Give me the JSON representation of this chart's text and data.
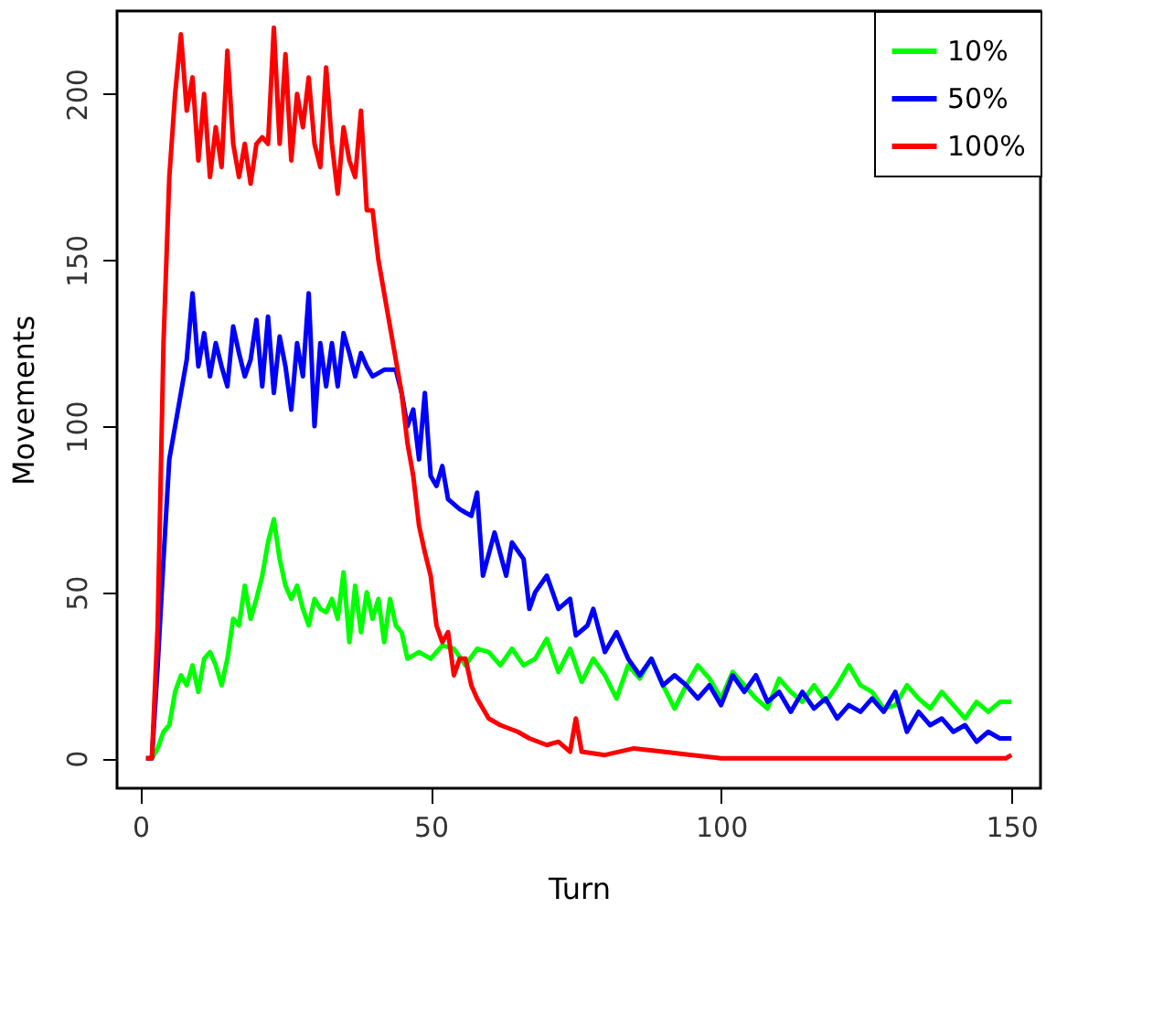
{
  "chart_data": {
    "type": "line",
    "xlabel": "Turn",
    "ylabel": "Movements",
    "xlim": [
      -4,
      155
    ],
    "ylim": [
      -9,
      225
    ],
    "xticks": [
      0,
      50,
      100,
      150
    ],
    "yticks": [
      0,
      50,
      100,
      150,
      200
    ],
    "grid": false,
    "legend": "top right",
    "marker": "none",
    "line_style": "solid",
    "series": [
      {
        "name": "10%",
        "color": "#00ff00",
        "x": [
          1,
          2,
          3,
          4,
          5,
          6,
          7,
          8,
          9,
          10,
          11,
          12,
          13,
          14,
          15,
          16,
          17,
          18,
          19,
          20,
          21,
          22,
          23,
          24,
          25,
          26,
          27,
          28,
          29,
          30,
          31,
          32,
          33,
          34,
          35,
          36,
          37,
          38,
          39,
          40,
          41,
          42,
          43,
          44,
          45,
          46,
          48,
          50,
          52,
          54,
          56,
          58,
          60,
          62,
          64,
          66,
          68,
          70,
          72,
          74,
          76,
          78,
          80,
          82,
          84,
          86,
          88,
          90,
          92,
          94,
          96,
          98,
          100,
          102,
          104,
          106,
          108,
          110,
          112,
          114,
          116,
          118,
          120,
          122,
          124,
          126,
          128,
          130,
          132,
          134,
          136,
          138,
          140,
          142,
          144,
          146,
          148,
          150
        ],
        "values": [
          0,
          0,
          3,
          8,
          10,
          20,
          25,
          22,
          28,
          20,
          30,
          32,
          28,
          22,
          30,
          42,
          40,
          52,
          42,
          48,
          55,
          65,
          72,
          60,
          52,
          48,
          52,
          45,
          40,
          48,
          45,
          44,
          48,
          42,
          56,
          35,
          52,
          38,
          50,
          42,
          48,
          35,
          48,
          40,
          38,
          30,
          32,
          30,
          34,
          33,
          28,
          33,
          32,
          28,
          33,
          28,
          30,
          36,
          26,
          33,
          23,
          30,
          25,
          18,
          28,
          24,
          30,
          22,
          15,
          22,
          28,
          24,
          18,
          26,
          22,
          18,
          15,
          24,
          20,
          17,
          22,
          17,
          22,
          28,
          22,
          20,
          15,
          16,
          22,
          18,
          15,
          20,
          16,
          12,
          17,
          14,
          17,
          17
        ]
      },
      {
        "name": "50%",
        "color": "#0000ff",
        "x": [
          1,
          2,
          3,
          4,
          5,
          6,
          7,
          8,
          9,
          10,
          11,
          12,
          13,
          14,
          15,
          16,
          17,
          18,
          19,
          20,
          21,
          22,
          23,
          24,
          25,
          26,
          27,
          28,
          29,
          30,
          31,
          32,
          33,
          34,
          35,
          36,
          37,
          38,
          39,
          40,
          42,
          44,
          45,
          46,
          47,
          48,
          49,
          50,
          51,
          52,
          53,
          55,
          57,
          58,
          59,
          61,
          63,
          64,
          66,
          67,
          68,
          70,
          72,
          74,
          75,
          77,
          78,
          80,
          82,
          84,
          86,
          88,
          90,
          92,
          94,
          96,
          98,
          100,
          102,
          104,
          106,
          108,
          110,
          112,
          114,
          116,
          118,
          120,
          122,
          124,
          126,
          128,
          130,
          132,
          134,
          136,
          138,
          140,
          142,
          144,
          146,
          148,
          150
        ],
        "values": [
          0,
          0,
          28,
          60,
          90,
          100,
          110,
          120,
          140,
          118,
          128,
          115,
          125,
          118,
          112,
          130,
          122,
          115,
          120,
          132,
          112,
          133,
          110,
          127,
          118,
          105,
          125,
          115,
          140,
          100,
          125,
          112,
          125,
          112,
          128,
          122,
          115,
          122,
          118,
          115,
          117,
          117,
          110,
          100,
          105,
          90,
          110,
          85,
          82,
          88,
          78,
          75,
          73,
          80,
          55,
          68,
          55,
          65,
          60,
          45,
          50,
          55,
          45,
          48,
          37,
          40,
          45,
          32,
          38,
          30,
          25,
          30,
          22,
          25,
          22,
          18,
          22,
          16,
          25,
          20,
          25,
          17,
          20,
          14,
          20,
          15,
          18,
          12,
          16,
          14,
          18,
          14,
          20,
          8,
          14,
          10,
          12,
          8,
          10,
          5,
          8,
          6,
          6
        ]
      },
      {
        "name": "100%",
        "color": "#ff0000",
        "x": [
          1,
          2,
          3,
          4,
          5,
          6,
          7,
          8,
          9,
          10,
          11,
          12,
          13,
          14,
          15,
          16,
          17,
          18,
          19,
          20,
          21,
          22,
          23,
          24,
          25,
          26,
          27,
          28,
          29,
          30,
          31,
          32,
          33,
          34,
          35,
          36,
          37,
          38,
          39,
          40,
          41,
          42,
          43,
          44,
          45,
          46,
          47,
          48,
          49,
          50,
          51,
          52,
          53,
          54,
          55,
          56,
          57,
          58,
          60,
          62,
          65,
          67,
          70,
          72,
          74,
          75,
          76,
          80,
          85,
          90,
          95,
          100,
          110,
          120,
          130,
          140,
          149,
          150
        ],
        "values": [
          0,
          0,
          40,
          125,
          175,
          200,
          218,
          195,
          205,
          180,
          200,
          175,
          190,
          178,
          213,
          185,
          175,
          185,
          173,
          185,
          187,
          185,
          220,
          185,
          212,
          180,
          200,
          190,
          205,
          185,
          178,
          208,
          185,
          170,
          190,
          180,
          175,
          195,
          165,
          165,
          150,
          140,
          130,
          120,
          110,
          95,
          85,
          70,
          62,
          55,
          40,
          35,
          38,
          25,
          30,
          30,
          22,
          18,
          12,
          10,
          8,
          6,
          4,
          5,
          2,
          12,
          2,
          1,
          3,
          2,
          1,
          0,
          0,
          0,
          0,
          0,
          0,
          1
        ]
      }
    ]
  }
}
